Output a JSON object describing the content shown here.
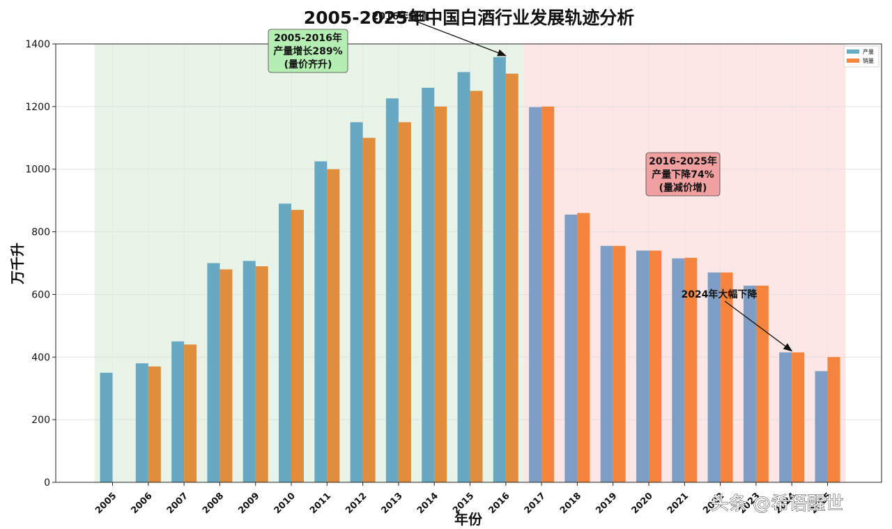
{
  "chart_data": {
    "type": "bar",
    "title": "2005-2025年中国白酒行业发展轨迹分析",
    "xlabel": "年份",
    "ylabel": "万千升",
    "ylim": [
      0,
      1400
    ],
    "yticks": [
      0,
      200,
      400,
      600,
      800,
      1000,
      1200,
      1400
    ],
    "grid": true,
    "legend_position": "top-right",
    "categories": [
      "2005",
      "2006",
      "2007",
      "2008",
      "2009",
      "2010",
      "2011",
      "2012",
      "2013",
      "2014",
      "2015",
      "2016",
      "2017",
      "2018",
      "2019",
      "2020",
      "2021",
      "2022",
      "2023",
      "2024",
      "2025"
    ],
    "series": [
      {
        "name": "产量",
        "values": [
          350,
          380,
          450,
          700,
          707,
          890,
          1025,
          1150,
          1226,
          1260,
          1310,
          1358,
          1198,
          855,
          755,
          740,
          715,
          670,
          628,
          415,
          355
        ]
      },
      {
        "name": "销量",
        "values": [
          null,
          370,
          440,
          680,
          690,
          870,
          1000,
          1100,
          1150,
          1200,
          1250,
          1305,
          1200,
          860,
          755,
          740,
          717,
          670,
          628,
          415,
          400
        ]
      }
    ],
    "colors": {
      "production_growth": "#67a9c2",
      "sales_growth": "#e08e3d",
      "production_decline": "#7e9ec5",
      "sales_decline": "#f5843e",
      "growth_region": "#e8f4e8",
      "decline_region": "#fde6e6",
      "growth_box": "#b5eeb2",
      "decline_box": "#f1a0a0"
    },
    "regions": [
      {
        "from": "2005",
        "to": "2016",
        "label_lines": [
          "2005-2016年",
          "产量增长289%",
          "(量价齐升)"
        ]
      },
      {
        "from": "2016",
        "to": "2025",
        "label_lines": [
          "2016-2025年",
          "产量下降74%",
          "(量减价增)"
        ]
      }
    ],
    "annotations": [
      {
        "text": "2016年峰值",
        "target_year": "2016",
        "target_value": 1358
      },
      {
        "text": "2024年大幅下降",
        "target_year": "2024",
        "target_value": 415
      }
    ]
  },
  "watermark": "头条 @希语醒世"
}
